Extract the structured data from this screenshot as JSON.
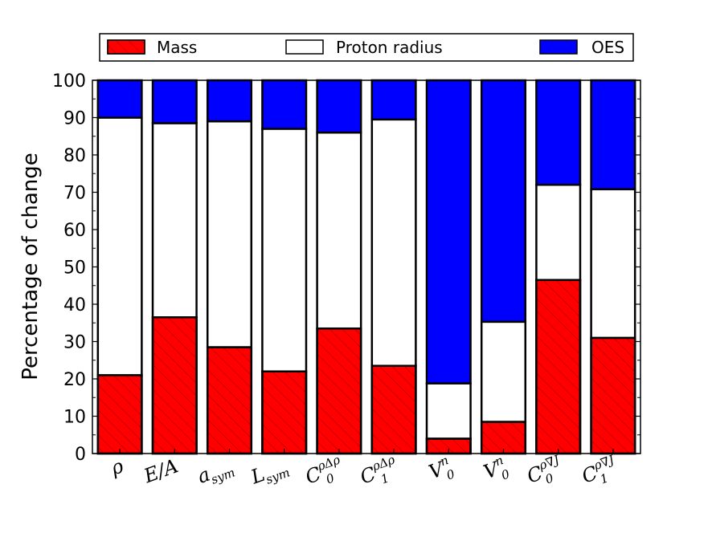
{
  "chart_data": {
    "type": "bar",
    "stacked": true,
    "title": "",
    "xlabel": "",
    "ylabel": "Percentage of change",
    "ylim": [
      0,
      100
    ],
    "yticks": [
      0,
      10,
      20,
      30,
      40,
      50,
      60,
      70,
      80,
      90,
      100
    ],
    "legend_position": "top",
    "categories": [
      {
        "label": "ρ",
        "main": "ρ",
        "sub": "",
        "sup": ""
      },
      {
        "label": "E/A",
        "main": "E/A",
        "sub": "",
        "sup": ""
      },
      {
        "label": "a_sym",
        "main": "a",
        "sub": "sym",
        "sup": ""
      },
      {
        "label": "L_sym",
        "main": "L",
        "sub": "sym",
        "sup": ""
      },
      {
        "label": "C_0^ρΔρ",
        "main": "C",
        "sub": "0",
        "sup": "ρΔρ"
      },
      {
        "label": "C_1^ρΔρ",
        "main": "C",
        "sub": "1",
        "sup": "ρΔρ"
      },
      {
        "label": "V_0^n",
        "main": "V",
        "sub": "0",
        "sup": "n"
      },
      {
        "label": "V_0^n",
        "main": "V",
        "sub": "0",
        "sup": "n"
      },
      {
        "label": "C_0^ρ∇J",
        "main": "C",
        "sub": "0",
        "sup": "ρ∇J"
      },
      {
        "label": "C_1^ρ∇J",
        "main": "C",
        "sub": "1",
        "sup": "ρ∇J"
      }
    ],
    "series": [
      {
        "name": "Mass",
        "color": "#ff0000",
        "hatch": true,
        "values": [
          21.0,
          36.5,
          28.5,
          22.0,
          33.5,
          23.5,
          4.0,
          8.5,
          46.5,
          31.0
        ]
      },
      {
        "name": "Proton radius",
        "color": "#ffffff",
        "hatch": false,
        "values": [
          69.0,
          52.0,
          60.5,
          65.0,
          52.5,
          66.0,
          14.8,
          26.8,
          25.5,
          39.8
        ]
      },
      {
        "name": "OES",
        "color": "#0000ff",
        "hatch": false,
        "values": [
          10.0,
          11.5,
          11.0,
          13.0,
          14.0,
          10.5,
          81.2,
          64.7,
          28.0,
          29.2
        ]
      }
    ]
  }
}
